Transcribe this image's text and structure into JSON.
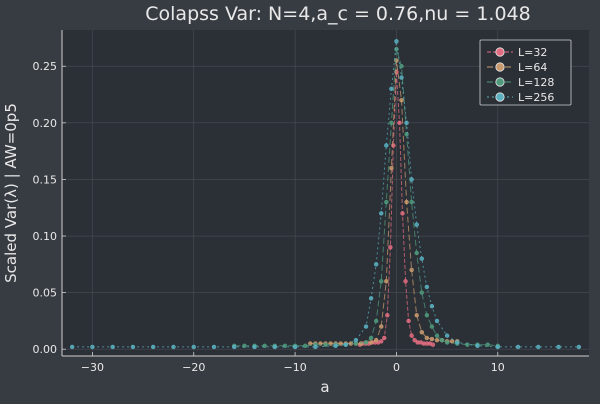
{
  "chart_data": {
    "type": "line",
    "title": "Colapss Var: N=4,a_c = 0.76,nu = 1.048",
    "xlabel": "a",
    "ylabel": "Scaled Var(λ) | AW=0p5",
    "xlim": [
      -33,
      19
    ],
    "ylim": [
      -0.006,
      0.282
    ],
    "x_ticks": [
      -30,
      -20,
      -10,
      0,
      10
    ],
    "y_ticks": [
      0.0,
      0.05,
      0.1,
      0.15,
      0.2,
      0.25
    ],
    "x_tick_labels": [
      "−30",
      "−20",
      "−10",
      "0",
      "10"
    ],
    "y_tick_labels": [
      "0.00",
      "0.05",
      "0.10",
      "0.15",
      "0.20",
      "0.25"
    ],
    "grid": true,
    "legend_position": "top-right",
    "colors": {
      "background": "#373b42",
      "plot_area": "#2b2f36",
      "text": "#e8e8e8",
      "series": [
        "#e26d81",
        "#c99a6e",
        "#4f9a7c",
        "#5bb0c0"
      ]
    },
    "series": [
      {
        "name": "L=32",
        "x": [
          -3.6,
          -3.3,
          -3.0,
          -2.7,
          -2.4,
          -2.1,
          -1.8,
          -1.5,
          -1.2,
          -0.9,
          -0.6,
          -0.3,
          0.0,
          0.3,
          0.6,
          0.9,
          1.2,
          1.5,
          1.8,
          2.1,
          2.4,
          2.7,
          3.0,
          3.3,
          3.6
        ],
        "y": [
          0.004,
          0.005,
          0.005,
          0.005,
          0.006,
          0.006,
          0.006,
          0.007,
          0.01,
          0.03,
          0.09,
          0.18,
          0.245,
          0.2,
          0.12,
          0.06,
          0.025,
          0.012,
          0.008,
          0.006,
          0.006,
          0.005,
          0.005,
          0.005,
          0.004
        ]
      },
      {
        "name": "L=64",
        "x": [
          -8.5,
          -8.0,
          -7.5,
          -7.0,
          -6.5,
          -6.0,
          -5.5,
          -5.0,
          -4.5,
          -4.0,
          -3.5,
          -3.0,
          -2.5,
          -2.0,
          -1.5,
          -1.0,
          -0.5,
          0.0,
          0.5,
          1.0,
          1.5,
          2.0,
          2.5,
          3.0,
          3.5,
          4.0,
          4.5,
          5.0,
          5.5,
          6.0
        ],
        "y": [
          0.005,
          0.005,
          0.005,
          0.005,
          0.005,
          0.005,
          0.005,
          0.005,
          0.005,
          0.005,
          0.005,
          0.006,
          0.006,
          0.008,
          0.02,
          0.06,
          0.16,
          0.255,
          0.22,
          0.13,
          0.07,
          0.03,
          0.015,
          0.01,
          0.009,
          0.008,
          0.008,
          0.007,
          0.007,
          0.007
        ]
      },
      {
        "name": "L=128",
        "x": [
          -16,
          -15,
          -14,
          -13,
          -12,
          -11,
          -10,
          -9,
          -8,
          -7,
          -6,
          -5,
          -4,
          -3,
          -2.5,
          -2,
          -1.5,
          -1,
          -0.5,
          0,
          0.5,
          1,
          1.5,
          2,
          2.5,
          3,
          3.5,
          4,
          4.5,
          5,
          6,
          7,
          8,
          9,
          10
        ],
        "y": [
          0.003,
          0.003,
          0.003,
          0.003,
          0.003,
          0.003,
          0.003,
          0.003,
          0.004,
          0.004,
          0.004,
          0.004,
          0.005,
          0.006,
          0.01,
          0.025,
          0.06,
          0.13,
          0.2,
          0.265,
          0.25,
          0.19,
          0.13,
          0.085,
          0.05,
          0.03,
          0.02,
          0.012,
          0.008,
          0.006,
          0.005,
          0.004,
          0.004,
          0.004,
          0.003
        ]
      },
      {
        "name": "L=256",
        "x": [
          -32,
          -30,
          -28,
          -26,
          -24,
          -22,
          -20,
          -18,
          -16,
          -14,
          -12,
          -10,
          -8,
          -6,
          -5,
          -4,
          -3,
          -2.5,
          -2,
          -1.5,
          -1,
          -0.5,
          0,
          0.5,
          1,
          1.5,
          2,
          2.5,
          3,
          3.5,
          4,
          5,
          6,
          8,
          10,
          12,
          14,
          16,
          18
        ],
        "y": [
          0.002,
          0.002,
          0.002,
          0.002,
          0.002,
          0.002,
          0.002,
          0.002,
          0.002,
          0.002,
          0.002,
          0.002,
          0.002,
          0.003,
          0.004,
          0.008,
          0.02,
          0.045,
          0.075,
          0.12,
          0.18,
          0.23,
          0.272,
          0.24,
          0.2,
          0.15,
          0.11,
          0.08,
          0.055,
          0.038,
          0.025,
          0.012,
          0.006,
          0.003,
          0.002,
          0.002,
          0.002,
          0.002,
          0.002
        ]
      }
    ]
  }
}
